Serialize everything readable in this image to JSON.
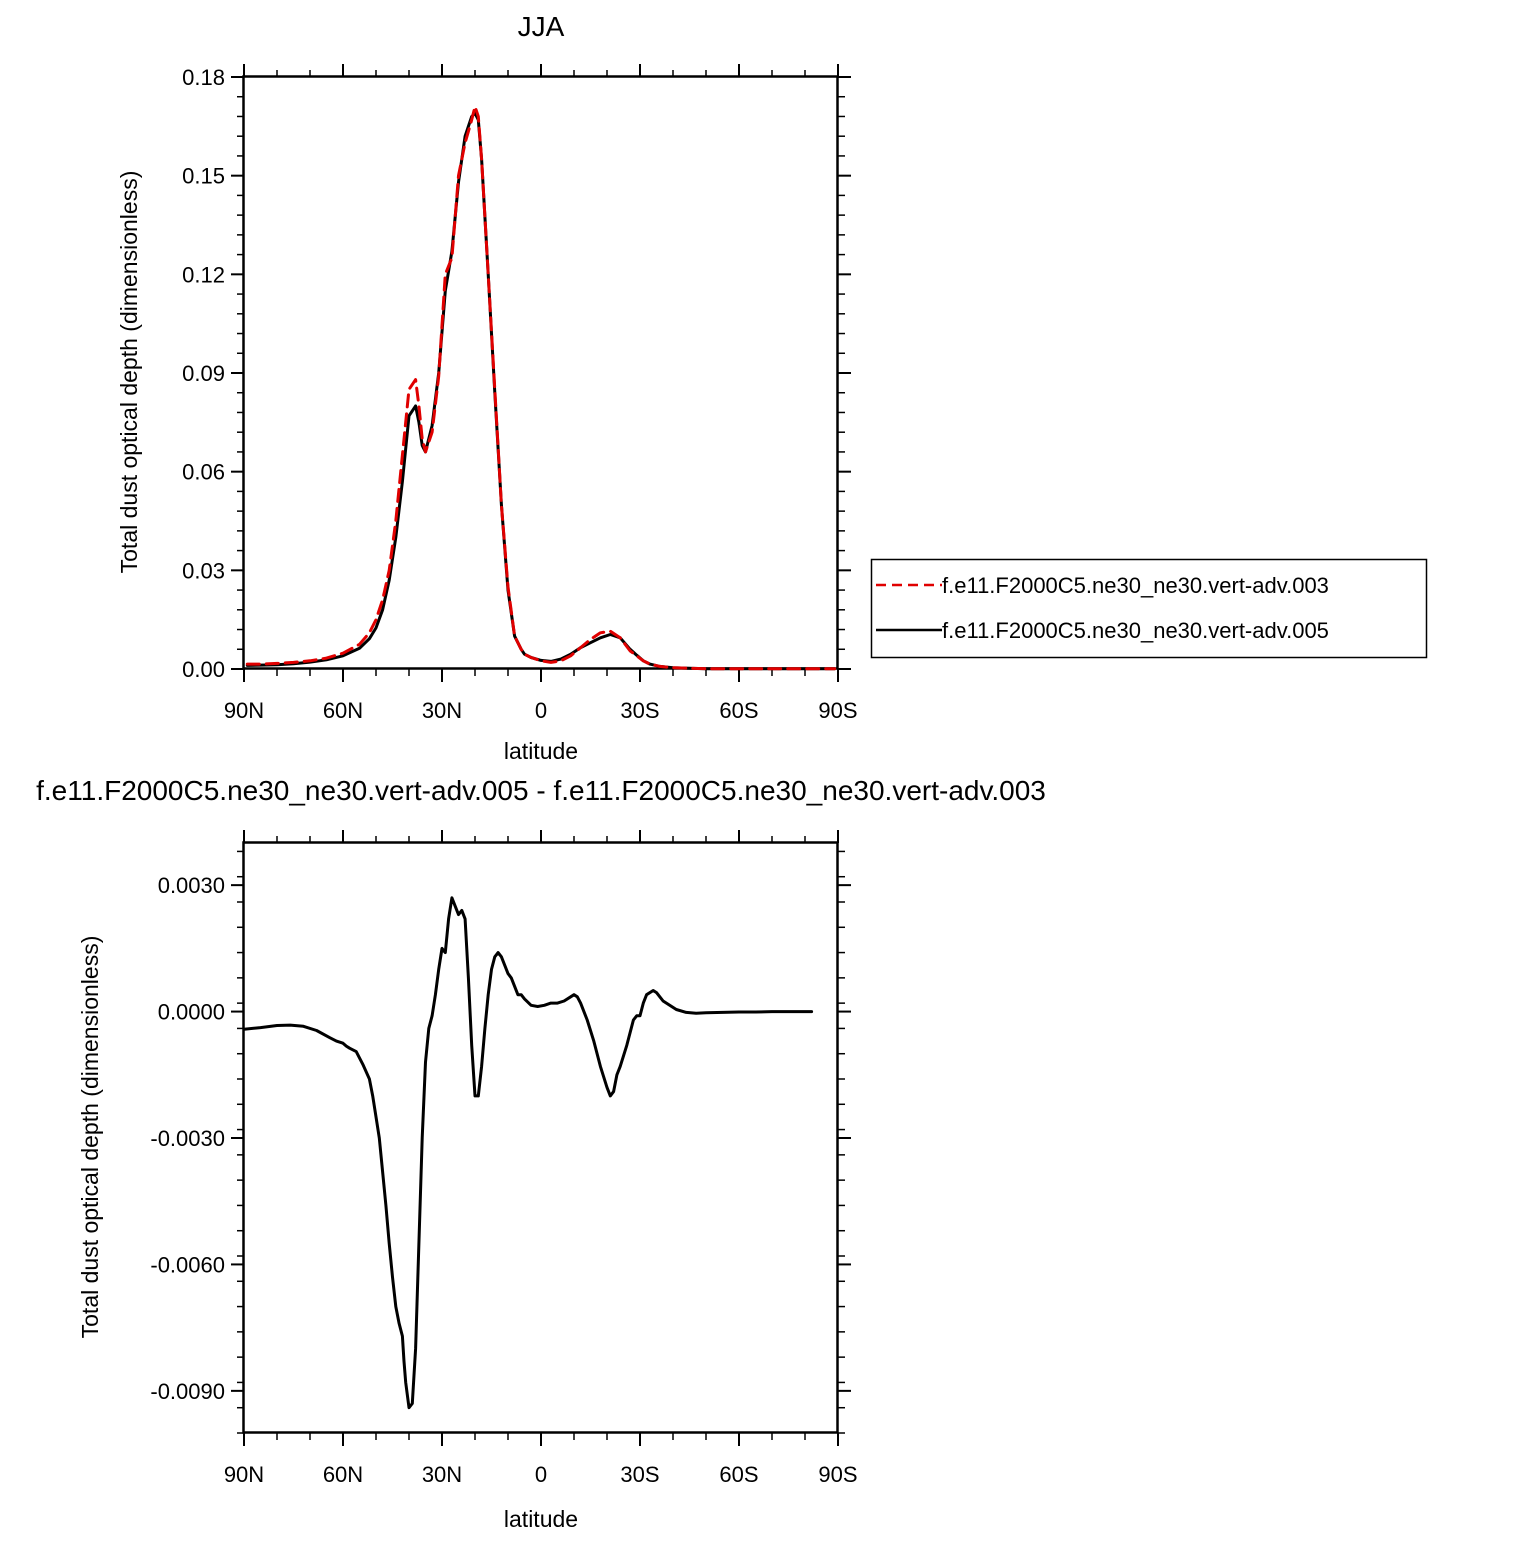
{
  "chart_data": [
    {
      "type": "line",
      "title": "JJA",
      "xlabel": "latitude",
      "ylabel": "Total dust optical depth (dimensionless)",
      "xlim": [
        90,
        -90
      ],
      "ylim": [
        0,
        0.18
      ],
      "xticks": [
        90,
        60,
        30,
        0,
        -30,
        -60,
        -90
      ],
      "xtick_labels": [
        "90N",
        "60N",
        "30N",
        "0",
        "30S",
        "60S",
        "90S"
      ],
      "yticks": [
        0,
        0.03,
        0.06,
        0.09,
        0.12,
        0.15,
        0.18
      ],
      "ytick_labels": [
        "0.00",
        "0.03",
        "0.06",
        "0.09",
        "0.12",
        "0.15",
        "0.18"
      ],
      "legend_position": "right",
      "series": [
        {
          "name": "f.e11.F2000C5.ne30_ne30.vert-adv.003",
          "color": "#e00000",
          "dash": "dashed",
          "x": [
            89,
            85,
            80,
            75,
            70,
            65,
            60,
            55,
            52,
            50,
            48,
            46,
            44,
            42,
            40,
            38,
            37,
            36,
            35,
            33,
            31,
            29,
            27,
            25,
            23,
            21,
            20,
            19,
            18,
            16,
            14,
            12,
            10,
            8,
            6,
            5,
            3,
            0,
            -3,
            -6,
            -9,
            -12,
            -15,
            -18,
            -21,
            -24,
            -27,
            -29,
            -31,
            -33,
            -36,
            -40,
            -45,
            -50,
            -55,
            -60,
            -65,
            -70,
            -75,
            -80,
            -85,
            -89
          ],
          "y": [
            0.0015,
            0.0015,
            0.0017,
            0.002,
            0.0025,
            0.0033,
            0.0048,
            0.0075,
            0.011,
            0.015,
            0.021,
            0.03,
            0.045,
            0.065,
            0.085,
            0.088,
            0.08,
            0.07,
            0.066,
            0.072,
            0.089,
            0.12,
            0.125,
            0.15,
            0.16,
            0.167,
            0.171,
            0.168,
            0.155,
            0.12,
            0.085,
            0.05,
            0.025,
            0.01,
            0.006,
            0.0045,
            0.0035,
            0.0025,
            0.002,
            0.0025,
            0.004,
            0.0065,
            0.009,
            0.011,
            0.0115,
            0.0095,
            0.0055,
            0.004,
            0.0025,
            0.0015,
            0.0008,
            0.0004,
            0.0002,
            0.0001,
            0.0001,
            0.0001,
            0.0001,
            0.0001,
            0.0001,
            0.0001,
            0.0001,
            0.0001
          ]
        },
        {
          "name": "f.e11.F2000C5.ne30_ne30.vert-adv.005",
          "color": "#000000",
          "dash": "solid",
          "x": [
            89,
            85,
            80,
            75,
            70,
            65,
            60,
            55,
            52,
            50,
            48,
            46,
            44,
            42,
            40,
            38,
            37,
            36,
            35,
            33,
            31,
            29,
            27,
            25,
            23,
            21,
            20,
            19,
            18,
            16,
            14,
            12,
            10,
            8,
            6,
            5,
            3,
            0,
            -3,
            -6,
            -9,
            -12,
            -15,
            -18,
            -21,
            -24,
            -27,
            -29,
            -31,
            -33,
            -36,
            -40,
            -45,
            -50,
            -55,
            -60,
            -65,
            -70,
            -75,
            -80,
            -85,
            -89
          ],
          "y": [
            0.0011,
            0.0012,
            0.0013,
            0.0016,
            0.0021,
            0.0028,
            0.004,
            0.0063,
            0.0092,
            0.0125,
            0.018,
            0.027,
            0.04,
            0.057,
            0.077,
            0.08,
            0.075,
            0.068,
            0.066,
            0.074,
            0.09,
            0.115,
            0.127,
            0.148,
            0.162,
            0.168,
            0.169,
            0.167,
            0.155,
            0.12,
            0.084,
            0.05,
            0.024,
            0.01,
            0.006,
            0.0045,
            0.0035,
            0.0026,
            0.0023,
            0.003,
            0.0045,
            0.0065,
            0.008,
            0.0095,
            0.0105,
            0.0095,
            0.006,
            0.0042,
            0.0025,
            0.0015,
            0.0008,
            0.0004,
            0.0002,
            0.0001,
            0.0001,
            0.0001,
            0.0001,
            0.0001,
            0.0001,
            0.0001,
            0.0001,
            0.0001
          ]
        }
      ]
    },
    {
      "type": "line",
      "title": "f.e11.F2000C5.ne30_ne30.vert-adv.005 - f.e11.F2000C5.ne30_ne30.vert-adv.003",
      "xlabel": "latitude",
      "ylabel": "Total dust optical depth (dimensionless)",
      "xlim": [
        90,
        -90
      ],
      "ylim": [
        -0.01,
        0.004
      ],
      "xticks": [
        90,
        60,
        30,
        0,
        -30,
        -60,
        -90
      ],
      "xtick_labels": [
        "90N",
        "60N",
        "30N",
        "0",
        "30S",
        "60S",
        "90S"
      ],
      "yticks": [
        -0.009,
        -0.006,
        -0.003,
        0,
        0.003
      ],
      "ytick_labels": [
        "-0.0090",
        "-0.0060",
        "-0.0030",
        "0.0000",
        "0.0030"
      ],
      "series": [
        {
          "color": "#000000",
          "dash": "solid",
          "x": [
            90,
            85,
            80,
            76,
            72,
            68,
            64,
            62,
            60,
            59,
            58,
            56,
            54,
            52,
            51,
            50,
            49,
            48,
            47,
            46,
            45,
            44,
            43,
            42,
            41.5,
            41,
            40,
            39,
            38,
            37,
            36,
            35,
            34,
            33,
            32,
            31,
            30,
            29,
            28,
            27,
            26,
            25,
            24,
            23,
            22,
            21,
            20,
            19,
            18,
            17,
            16,
            15,
            14,
            13,
            12,
            11,
            10,
            9,
            8,
            7,
            6,
            5,
            3,
            1,
            -1,
            -3,
            -5,
            -7,
            -9,
            -10,
            -11,
            -12,
            -14,
            -16,
            -18,
            -20,
            -21,
            -22,
            -23,
            -24,
            -26,
            -28,
            -29,
            -30,
            -31,
            -32,
            -34,
            -35,
            -36,
            -37,
            -39,
            -41,
            -44,
            -47,
            -50,
            -55,
            -60,
            -65,
            -70,
            -75,
            -80,
            -82
          ],
          "y": [
            -0.00042,
            -0.00038,
            -0.00033,
            -0.00032,
            -0.00035,
            -0.00045,
            -0.00062,
            -0.0007,
            -0.00075,
            -0.00082,
            -0.00087,
            -0.00095,
            -0.00125,
            -0.0016,
            -0.002,
            -0.0025,
            -0.003,
            -0.0038,
            -0.0046,
            -0.0055,
            -0.0063,
            -0.007,
            -0.0074,
            -0.0077,
            -0.0083,
            -0.0088,
            -0.0094,
            -0.0093,
            -0.008,
            -0.0055,
            -0.003,
            -0.0012,
            -0.0004,
            -0.0001,
            0.0004,
            0.001,
            0.0015,
            0.0014,
            0.0022,
            0.0027,
            0.0025,
            0.0023,
            0.0024,
            0.0022,
            0.0008,
            -0.0008,
            -0.002,
            -0.002,
            -0.0013,
            -0.0004,
            0.0004,
            0.001,
            0.0013,
            0.0014,
            0.0013,
            0.0011,
            0.0009,
            0.0008,
            0.0006,
            0.0004,
            0.0004,
            0.0003,
            0.00015,
            0.00012,
            0.00015,
            0.0002,
            0.0002,
            0.00025,
            0.00035,
            0.0004,
            0.00035,
            0.0002,
            -0.0002,
            -0.0007,
            -0.0013,
            -0.0018,
            -0.002,
            -0.0019,
            -0.0015,
            -0.0013,
            -0.0008,
            -0.0002,
            -0.0001,
            -0.0001,
            0.0002,
            0.0004,
            0.0005,
            0.00045,
            0.00035,
            0.00025,
            0.00015,
            5e-05,
            -2e-05,
            -4e-05,
            -3e-05,
            -2e-05,
            -1e-05,
            -1e-05,
            0.0,
            0.0,
            0.0,
            0.0
          ]
        }
      ]
    }
  ]
}
